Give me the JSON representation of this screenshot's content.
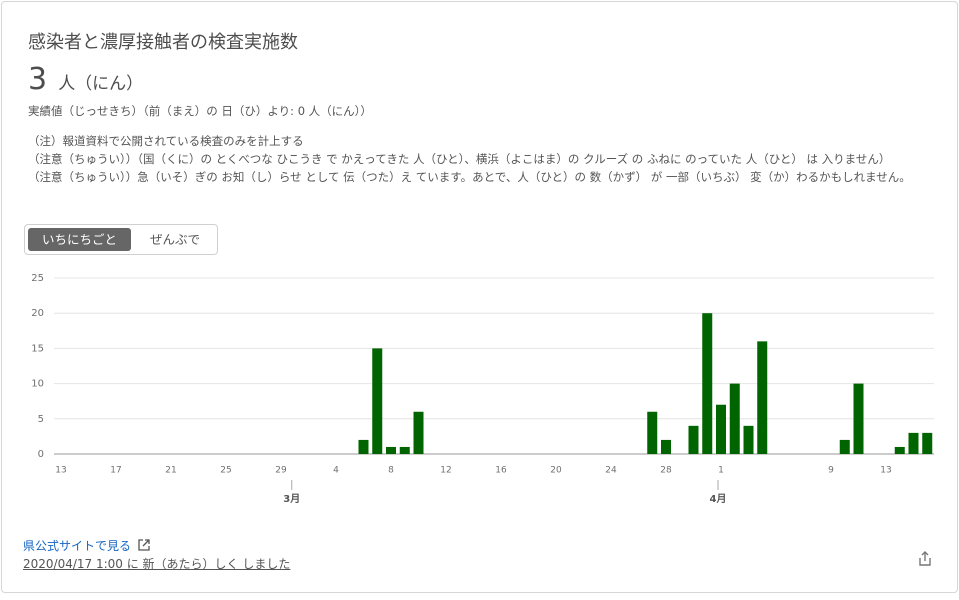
{
  "header": {
    "title": "感染者と濃厚接触者の検査実施数",
    "value": "3",
    "unit": "人（にん）",
    "sub": "実績値（じっせきち）（前（まえ）の 日（ひ）より: 0 人（にん））"
  },
  "notes": [
    "（注）報道資料で公開されている検査のみを計上する",
    "（注意（ちゅうい））（国（くに）の とくべつな ひこうき で かえってきた 人（ひと）、横浜（よこはま）の クルーズ の ふねに のっていた 人（ひと） は 入りません）",
    "（注意（ちゅうい））急（いそ）ぎの お知（し）らせ として 伝（つた）え ています。あとで、人（ひと）の 数（かず） が 一部（いちぶ） 変（か）わるかもしれません。"
  ],
  "toggle": [
    "いちにちごと",
    "ぜんぶで"
  ],
  "chart_data": {
    "type": "bar",
    "color": "#006400",
    "grid": true,
    "categories": [
      "13",
      null,
      null,
      null,
      "17",
      null,
      null,
      null,
      "21",
      null,
      null,
      null,
      "25",
      null,
      null,
      null,
      "29",
      null,
      null,
      null,
      "4",
      null,
      null,
      null,
      "8",
      null,
      null,
      null,
      "12",
      null,
      null,
      null,
      "16",
      null,
      null,
      null,
      "20",
      null,
      null,
      null,
      "24",
      null,
      null,
      null,
      "28",
      null,
      null,
      null,
      "1",
      null,
      null,
      null,
      null,
      null,
      null,
      null,
      "9",
      null,
      null,
      null,
      "13",
      null,
      null,
      null
    ],
    "values": [
      0,
      0,
      0,
      0,
      0,
      0,
      0,
      0,
      0,
      0,
      0,
      0,
      0,
      0,
      0,
      0,
      0,
      0,
      0,
      0,
      0,
      0,
      2,
      15,
      1,
      1,
      6,
      0,
      0,
      0,
      0,
      0,
      0,
      0,
      0,
      0,
      0,
      0,
      0,
      0,
      0,
      0,
      0,
      6,
      2,
      0,
      4,
      20,
      7,
      10,
      4,
      16,
      0,
      0,
      0,
      0,
      0,
      2,
      10,
      0,
      0,
      1,
      3,
      3
    ],
    "months": [
      "3月",
      "4月"
    ],
    "ylim": [
      0,
      25
    ],
    "yticks": [
      0,
      5,
      10,
      15,
      20,
      25
    ]
  },
  "footer": {
    "link": "県公式サイトで見る",
    "updated": "2020/04/17 1:00 に 新（あたら）しく しました"
  }
}
